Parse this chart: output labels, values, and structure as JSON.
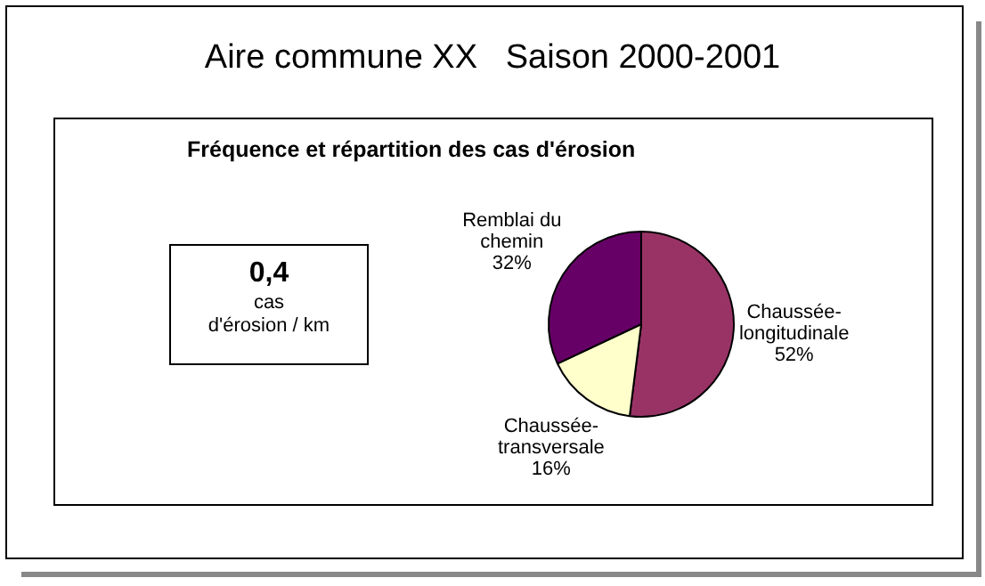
{
  "chart_data": {
    "type": "pie",
    "title": "Aire commune XX   Saison 2000-2001",
    "subtitle": "Fréquence et répartition des cas d'érosion",
    "categories": [
      "Chaussée-longitudinale",
      "Chaussée-transversale",
      "Remblai du chemin"
    ],
    "values": [
      52,
      16,
      32
    ],
    "colors": [
      "#993366",
      "#ffffcc",
      "#660066"
    ],
    "value_labels": [
      "52%",
      "16%",
      "32%"
    ],
    "legend": false,
    "annotations": [
      "0,4",
      "cas",
      "d'érosion / km"
    ]
  }
}
